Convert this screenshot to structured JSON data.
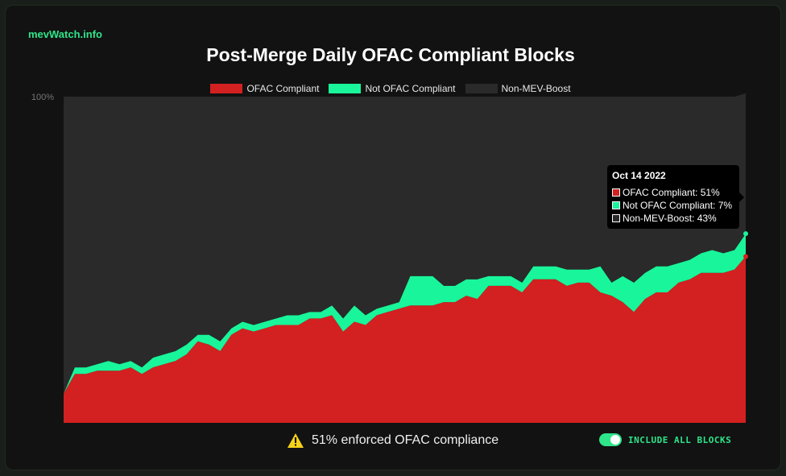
{
  "brand": "mevWatch.info",
  "chart_data": {
    "type": "area",
    "stacked": true,
    "title": "Post-Merge Daily OFAC Compliant Blocks",
    "ylabel": "",
    "xlabel": "",
    "ylim": [
      0,
      100
    ],
    "y_tick_label": "100%",
    "series": [
      {
        "name": "OFAC Compliant",
        "color": "#d32020",
        "values": [
          9,
          15,
          15,
          16,
          16,
          16,
          17,
          15,
          17,
          18,
          19,
          21,
          25,
          24,
          22,
          27,
          29,
          28,
          29,
          30,
          30,
          30,
          32,
          32,
          33,
          28,
          31,
          30,
          33,
          34,
          35,
          36,
          36,
          36,
          37,
          37,
          39,
          38,
          42,
          42,
          42,
          40,
          44,
          44,
          44,
          42,
          43,
          43,
          40,
          39,
          37,
          34,
          38,
          40,
          40,
          43,
          44,
          46,
          46,
          46,
          47,
          51
        ]
      },
      {
        "name": "Not OFAC Compliant",
        "color": "#19f59a",
        "values": [
          0,
          2,
          2,
          2,
          3,
          2,
          2,
          2,
          3,
          3,
          3,
          3,
          2,
          3,
          3,
          2,
          2,
          2,
          2,
          2,
          3,
          3,
          2,
          2,
          3,
          4,
          5,
          3,
          2,
          2,
          2,
          9,
          9,
          9,
          5,
          5,
          5,
          6,
          3,
          3,
          3,
          3,
          4,
          4,
          4,
          5,
          4,
          4,
          8,
          4,
          8,
          9,
          8,
          8,
          8,
          6,
          6,
          6,
          7,
          6,
          6,
          7
        ]
      },
      {
        "name": "Non-MEV-Boost",
        "color": "#2a2a2a",
        "values": [
          91,
          83,
          83,
          82,
          81,
          82,
          81,
          83,
          80,
          79,
          78,
          76,
          73,
          73,
          75,
          71,
          69,
          70,
          69,
          68,
          67,
          67,
          66,
          66,
          64,
          68,
          64,
          67,
          65,
          64,
          63,
          55,
          55,
          55,
          58,
          58,
          56,
          56,
          55,
          55,
          55,
          57,
          52,
          52,
          52,
          53,
          53,
          53,
          52,
          57,
          55,
          57,
          54,
          52,
          52,
          51,
          50,
          48,
          47,
          48,
          47,
          43
        ]
      }
    ],
    "tooltip": {
      "title": "Oct 14 2022",
      "rows": [
        "OFAC Compliant: 51%",
        "Not OFAC Compliant: 7%",
        "Non-MEV-Boost: 43%"
      ]
    }
  },
  "notice": {
    "icon": "warning-icon",
    "text": "51% enforced OFAC compliance"
  },
  "toggle": {
    "label": "INCLUDE ALL BLOCKS",
    "on": true
  },
  "colors": {
    "accent": "#2ee58a",
    "ofac": "#d32020",
    "non_ofac": "#19f59a",
    "non_mev": "#2a2a2a"
  }
}
